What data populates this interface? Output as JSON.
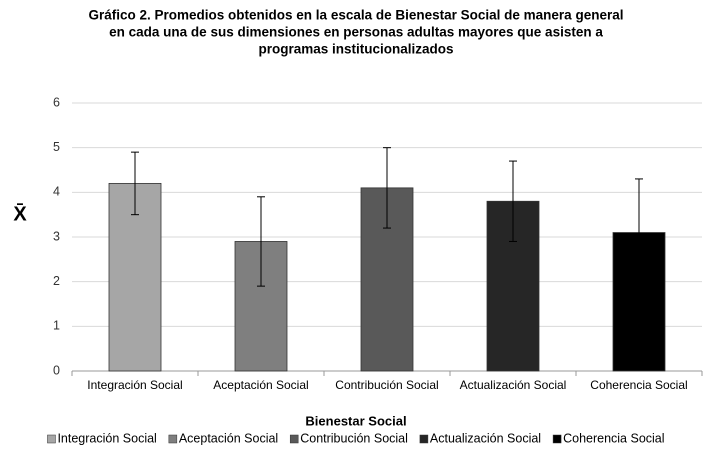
{
  "chart_data": {
    "type": "bar",
    "title": [
      "Gráfico 2. Promedios obtenidos en la escala de Bienestar Social de manera general",
      "en cada una de sus dimensiones en personas adultas mayores que asisten a",
      "programas institucionalizados"
    ],
    "x_label": "Bienestar Social",
    "y_label": "X̄",
    "categories": [
      "Integración Social",
      "Aceptación Social",
      "Contribución Social",
      "Actualización Social",
      "Coherencia Social"
    ],
    "values": [
      4.2,
      2.9,
      4.1,
      3.8,
      3.1
    ],
    "errors": [
      0.7,
      1.0,
      0.9,
      0.9,
      1.2
    ],
    "colors": [
      "#a6a6a6",
      "#7f7f7f",
      "#595959",
      "#262626",
      "#000000"
    ],
    "ylim": [
      0,
      6
    ],
    "yticks": [
      0,
      1,
      2,
      3,
      4,
      5,
      6
    ],
    "grid": true,
    "legend": "bottom"
  }
}
